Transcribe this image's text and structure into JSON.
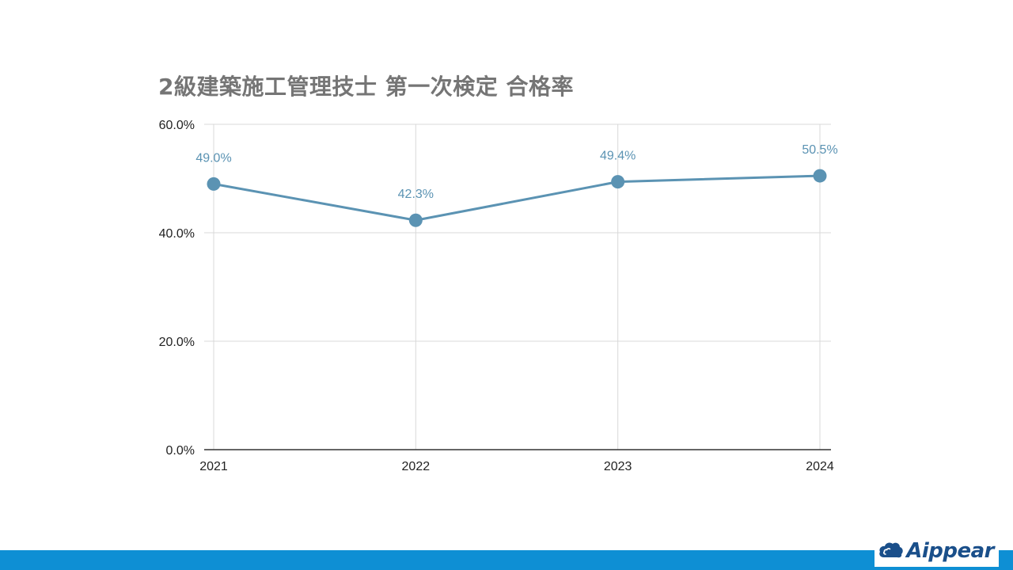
{
  "chart_data": {
    "type": "line",
    "title": "2級建築施工管理技士 第一次検定 合格率",
    "categories": [
      "2021",
      "2022",
      "2023",
      "2024"
    ],
    "series": [
      {
        "values": [
          49.0,
          42.3,
          49.4,
          50.5
        ],
        "labels": [
          "49.0%",
          "42.3%",
          "49.4%",
          "50.5%"
        ]
      }
    ],
    "ylim": [
      0,
      60
    ],
    "yticks": [
      "0.0%",
      "20.0%",
      "40.0%",
      "60.0%"
    ],
    "ytick_values": [
      0,
      20,
      40,
      60
    ],
    "grid": true,
    "colors": {
      "line": "#5b93b3",
      "label": "#5b93b3",
      "grid": "#d9d9d9",
      "axis": "#333333",
      "title": "#757575"
    }
  },
  "brand": {
    "logo_text": "Aippear",
    "footer_color": "#0e8fd4",
    "logo_color": "#1a4f8a"
  }
}
